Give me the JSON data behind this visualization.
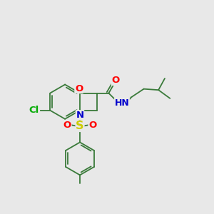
{
  "bg_color": "#e8e8e8",
  "bond_color": "#3a7a3a",
  "bond_width": 1.3,
  "atom_colors": {
    "O": "#ff0000",
    "N": "#0000cc",
    "S": "#cccc00",
    "Cl": "#00aa00",
    "H": "#888888",
    "C": "#3a7a3a"
  },
  "font_size": 9.5,
  "fig_size": [
    3.0,
    3.0
  ],
  "dpi": 100,
  "xlim": [
    0,
    10
  ],
  "ylim": [
    0,
    10
  ]
}
